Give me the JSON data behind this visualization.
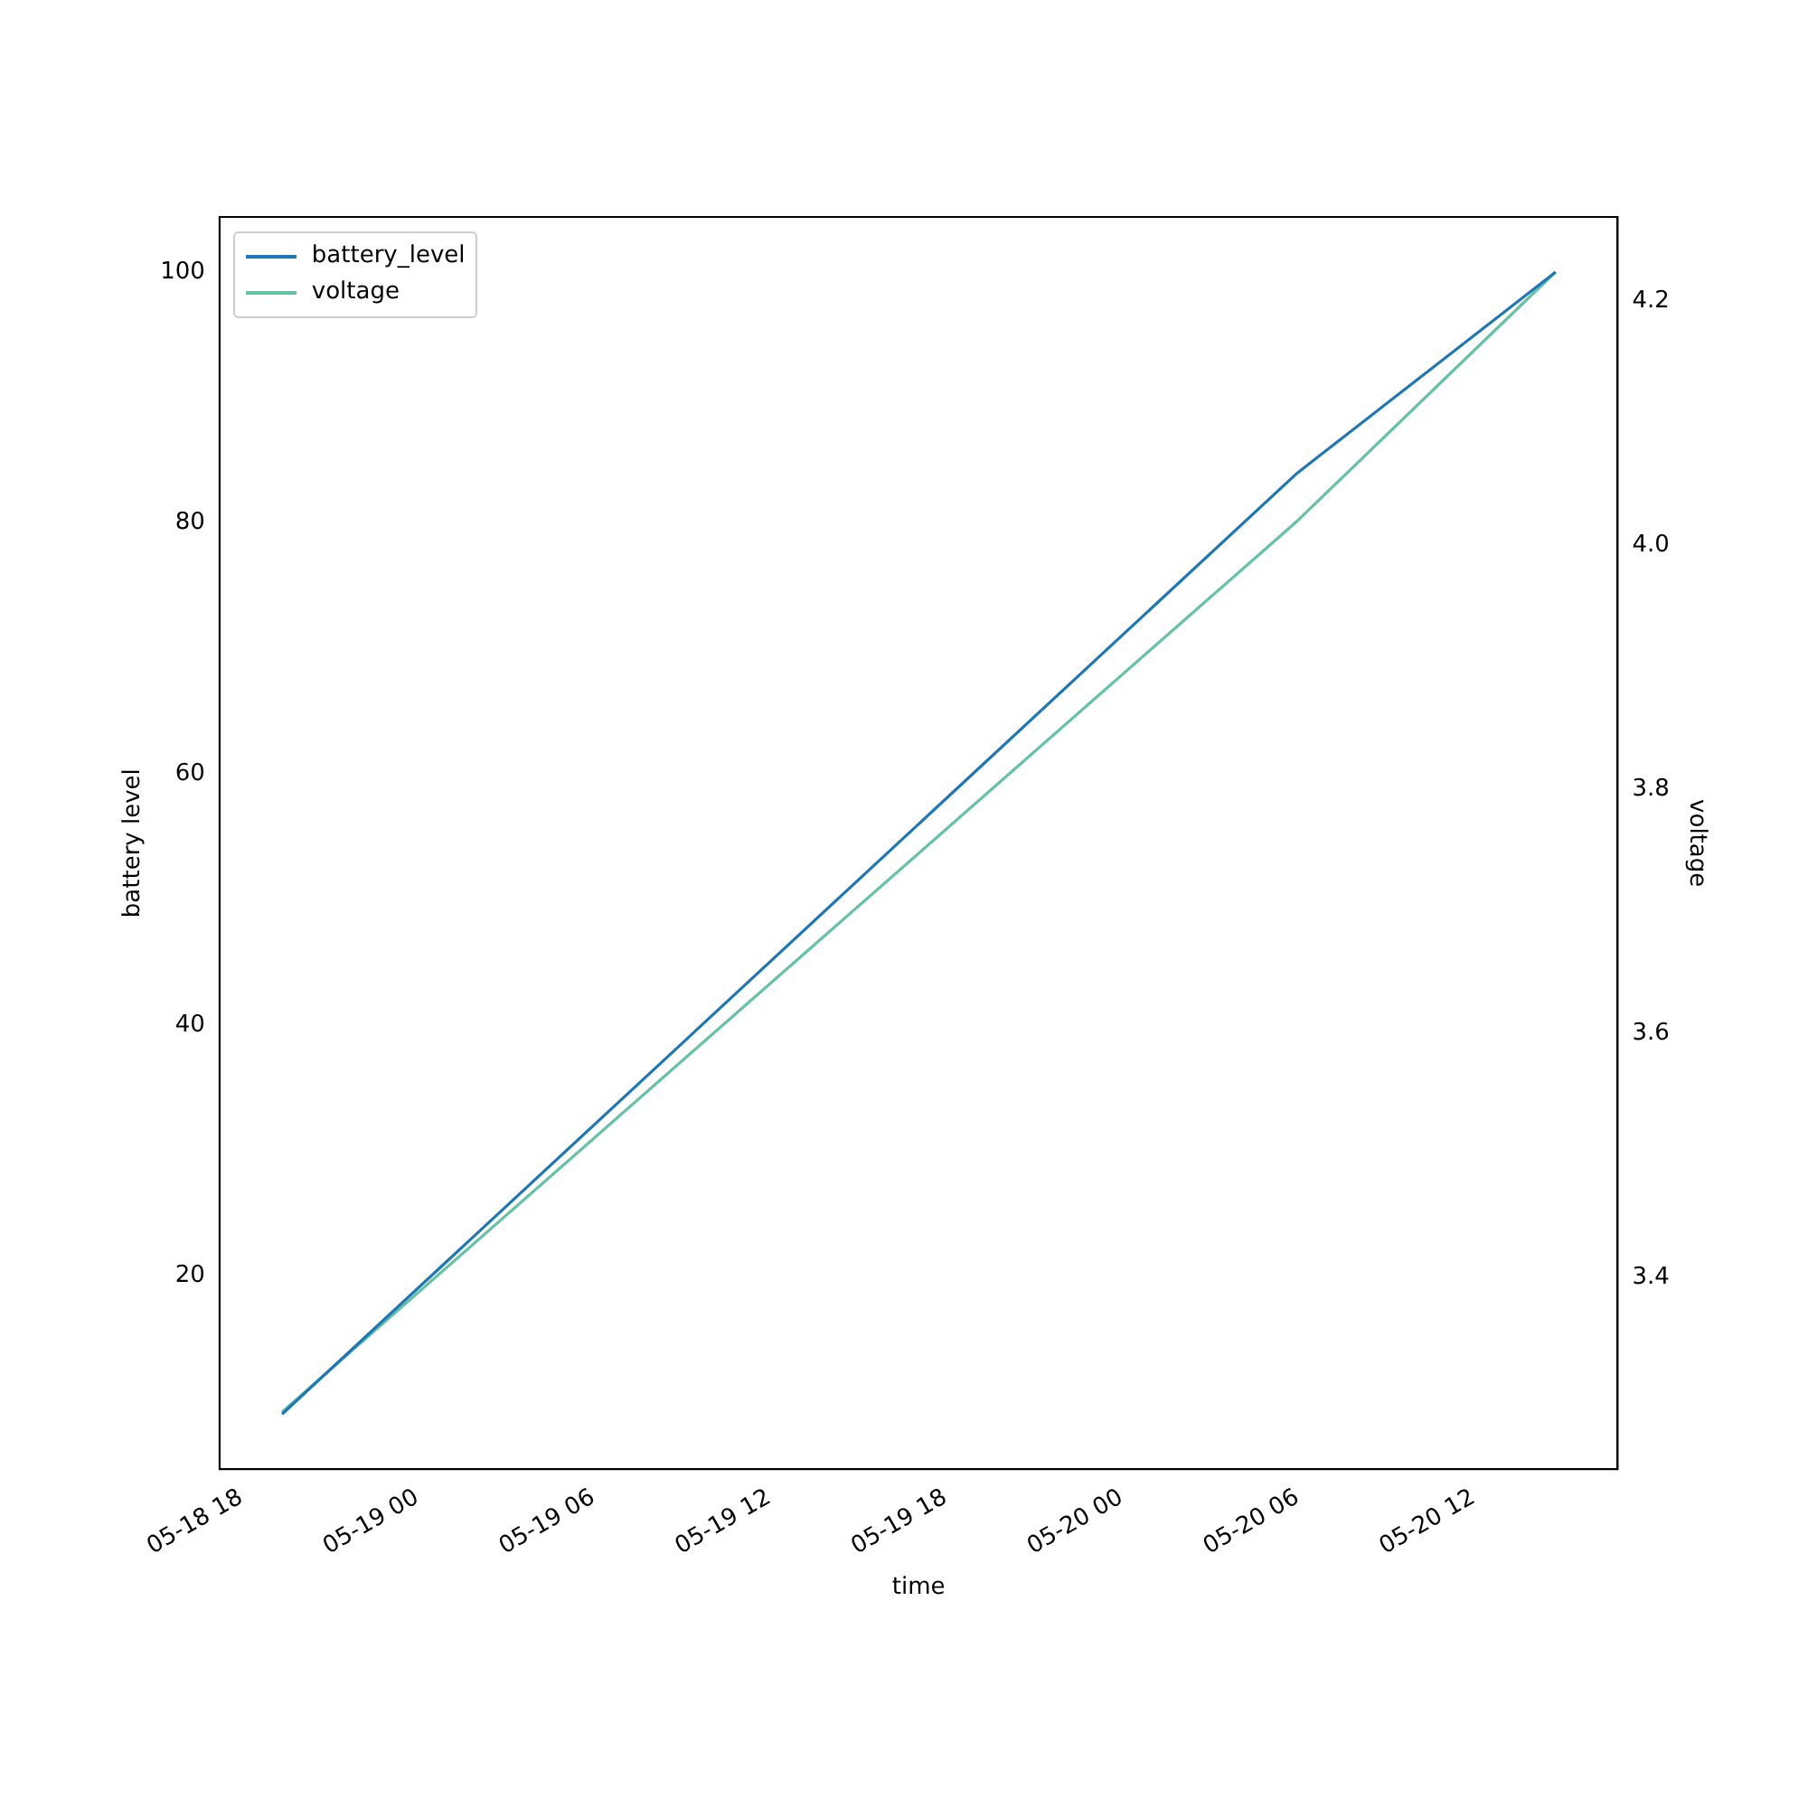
{
  "chart_data": {
    "type": "line",
    "xlabel": "time",
    "ylabel": "battery level",
    "y2label": "voltage",
    "x": [
      "--05-18T19:24",
      "--05-20T06:00",
      "--05-20T14:48"
    ],
    "series": [
      {
        "name": "battery_level",
        "color": "#1f77b4",
        "values": [
          9,
          84,
          100
        ]
      },
      {
        "name": "voltage",
        "color": "#66c2a5",
        "axis": "y2",
        "values": [
          3.29,
          4.02,
          4.224
        ]
      }
    ],
    "xlim": [
      "--05-18T17:16",
      "--05-20T16:55"
    ],
    "xticks": [
      {
        "value": "--05-18T18:00",
        "label": "05-18 18"
      },
      {
        "value": "--05-19T00:00",
        "label": "05-19 00"
      },
      {
        "value": "--05-19T06:00",
        "label": "05-19 06"
      },
      {
        "value": "--05-19T12:00",
        "label": "05-19 12"
      },
      {
        "value": "--05-19T18:00",
        "label": "05-19 18"
      },
      {
        "value": "--05-20T00:00",
        "label": "05-20 00"
      },
      {
        "value": "--05-20T06:00",
        "label": "05-20 06"
      },
      {
        "value": "--05-20T12:00",
        "label": "05-20 12"
      }
    ],
    "ylim": [
      4.6,
      104.4
    ],
    "yticks": [
      20,
      40,
      60,
      80,
      100
    ],
    "y2lim": [
      3.243,
      4.269
    ],
    "y2ticks": [
      3.4,
      3.6,
      3.8,
      {
        "value": 4.0,
        "label": "4.0"
      },
      4.2
    ],
    "legend": "top left",
    "grid": false,
    "marker": "none",
    "line_style": "solid"
  }
}
